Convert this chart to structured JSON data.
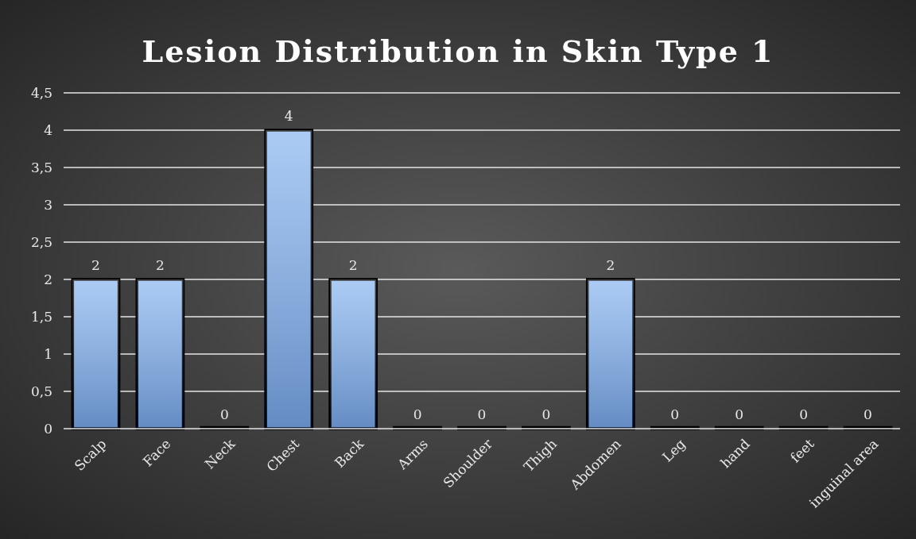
{
  "chart_data": {
    "type": "bar",
    "title": "Lesion Distribution in Skin Type 1",
    "categories": [
      "Scalp",
      "Face",
      "Neck",
      "Chest",
      "Back",
      "Arms",
      "Shoulder",
      "Thigh",
      "Abdomen",
      "Leg",
      "hand",
      "feet",
      "inguinal area"
    ],
    "values": [
      2,
      2,
      0,
      4,
      2,
      0,
      0,
      0,
      2,
      0,
      0,
      0,
      0
    ],
    "color": "#8fbaf0",
    "ylim": [
      0,
      4.5
    ],
    "yticks": [
      0,
      {
        "value": 0.5,
        "label": "0,5"
      },
      1,
      {
        "value": 1.5,
        "label": "1,5"
      },
      2,
      {
        "value": 2.5,
        "label": "2,5"
      },
      3,
      {
        "value": 3.5,
        "label": "3,5"
      },
      4,
      {
        "value": 4.5,
        "label": "4,5"
      }
    ],
    "grid": "y",
    "data_labels": true
  }
}
